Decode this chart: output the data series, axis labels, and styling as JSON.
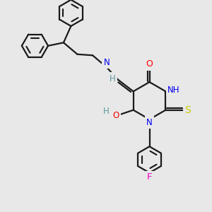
{
  "bg_color": "#e8e8e8",
  "bond_color": "#1a1a1a",
  "bond_width": 1.6,
  "atom_colors": {
    "N": "#0000ee",
    "O": "#ff0000",
    "S": "#cccc00",
    "F": "#ff00cc",
    "C": "#1a1a1a",
    "H": "#5a9a9a"
  },
  "font_size": 8.5,
  "fig_size": [
    3.0,
    3.0
  ],
  "dpi": 100
}
